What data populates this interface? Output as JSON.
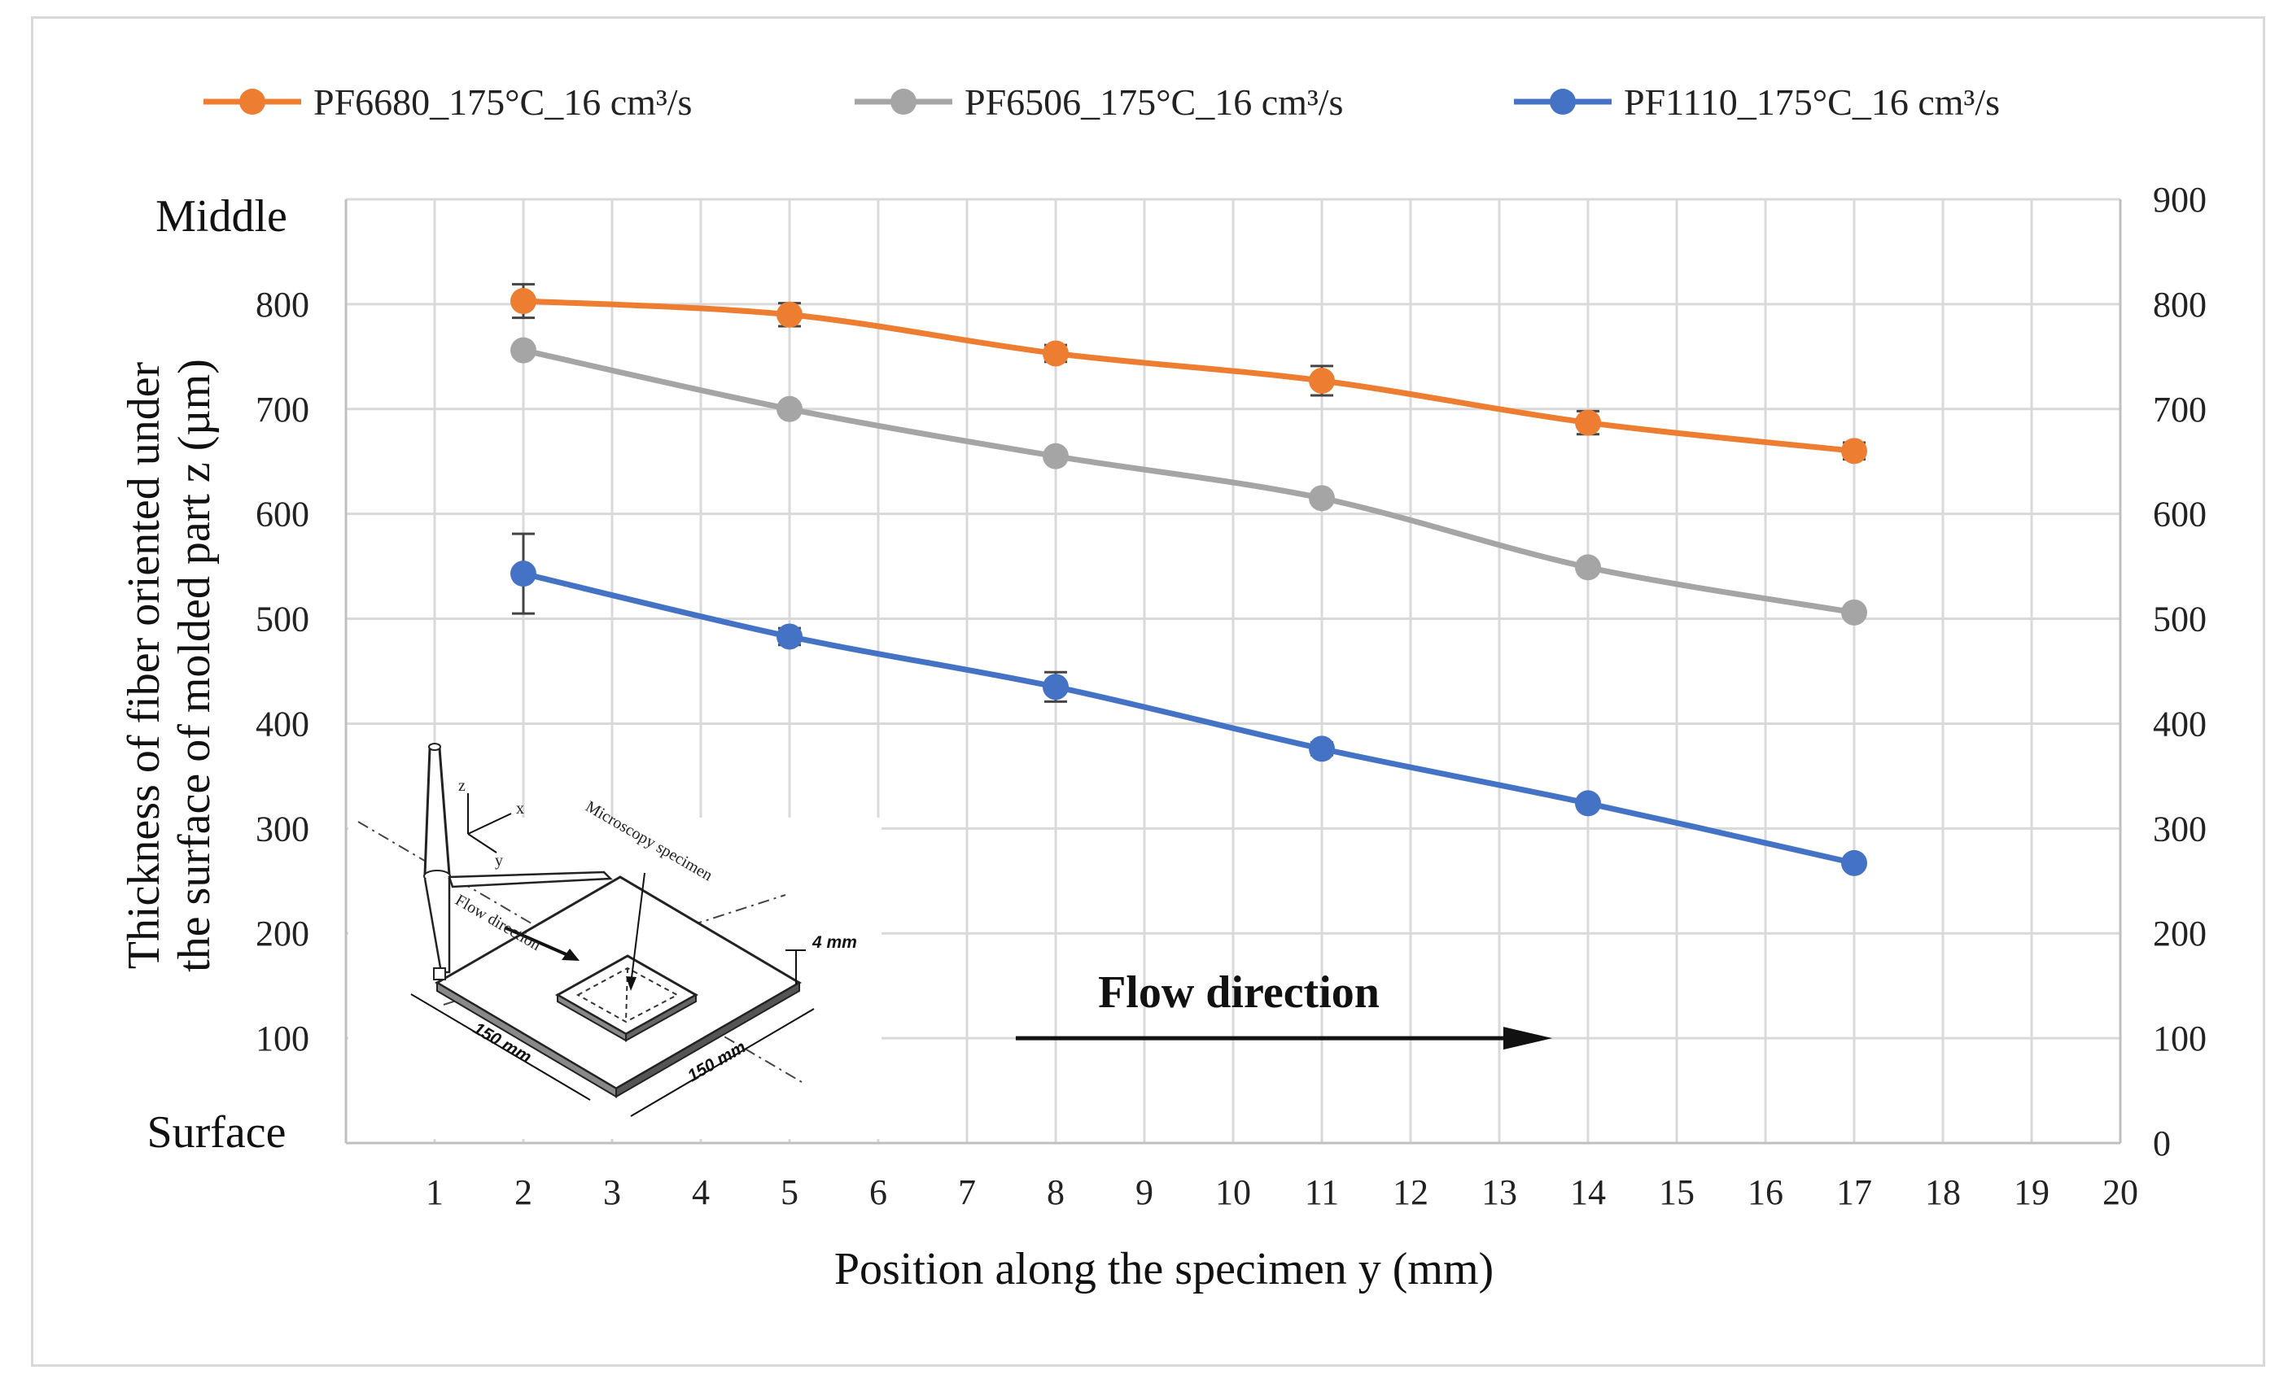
{
  "chart_data": {
    "type": "line",
    "title": "",
    "xlabel": "Position along the specimen y (mm)",
    "ylabel_line1": "Thickness of fiber oriented under",
    "ylabel_line2": "the surface of molded part z (µm)",
    "xlim": [
      0,
      20
    ],
    "ylim": [
      0,
      900
    ],
    "xticks": [
      1,
      2,
      3,
      4,
      5,
      6,
      7,
      8,
      9,
      10,
      11,
      12,
      13,
      14,
      15,
      16,
      17,
      18,
      19,
      20
    ],
    "yticks_left": [
      "100",
      "200",
      "300",
      "400",
      "500",
      "600",
      "700",
      "800"
    ],
    "yticks_right": [
      "0",
      "100",
      "200",
      "300",
      "400",
      "500",
      "600",
      "700",
      "800",
      "900"
    ],
    "ytick_values_left": [
      100,
      200,
      300,
      400,
      500,
      600,
      700,
      800
    ],
    "ytick_values_right": [
      0,
      100,
      200,
      300,
      400,
      500,
      600,
      700,
      800,
      900
    ],
    "left_top_label": "Middle",
    "left_bottom_label": "Surface",
    "grid": true,
    "legend_position": "top",
    "annotation": "Flow direction",
    "annotation_arrow": {
      "x_start": 7.55,
      "x_end": 13.55,
      "y": 100
    },
    "series": [
      {
        "name": "PF6680_175°C_16 cm³/s",
        "color": "#ED7D31",
        "x": [
          2,
          5,
          8,
          11,
          14,
          17
        ],
        "values": [
          803,
          790,
          753,
          727,
          687,
          660
        ],
        "errors": [
          16,
          11,
          8,
          14,
          11,
          8
        ]
      },
      {
        "name": "PF6506_175°C_16 cm³/s",
        "color": "#A5A5A5",
        "x": [
          2,
          5,
          8,
          11,
          14,
          17
        ],
        "values": [
          756,
          700,
          655,
          615,
          549,
          506
        ],
        "errors": [
          0,
          0,
          0,
          0,
          0,
          0
        ]
      },
      {
        "name": "PF1110_175°C_16 cm³/s",
        "color": "#4472C4",
        "x": [
          2,
          5,
          8,
          11,
          14,
          17
        ],
        "values": [
          543,
          483,
          435,
          376,
          324,
          267
        ],
        "errors": [
          38,
          8,
          14,
          6,
          5,
          5
        ]
      }
    ]
  },
  "inset": {
    "axis_x": "x",
    "axis_y": "y",
    "axis_z": "z",
    "microscopy_label": "Microscopy specimen",
    "flow_label": "Flow direction",
    "thickness_label": "4 mm",
    "width_label_1": "150 mm",
    "width_label_2": "150 mm"
  }
}
